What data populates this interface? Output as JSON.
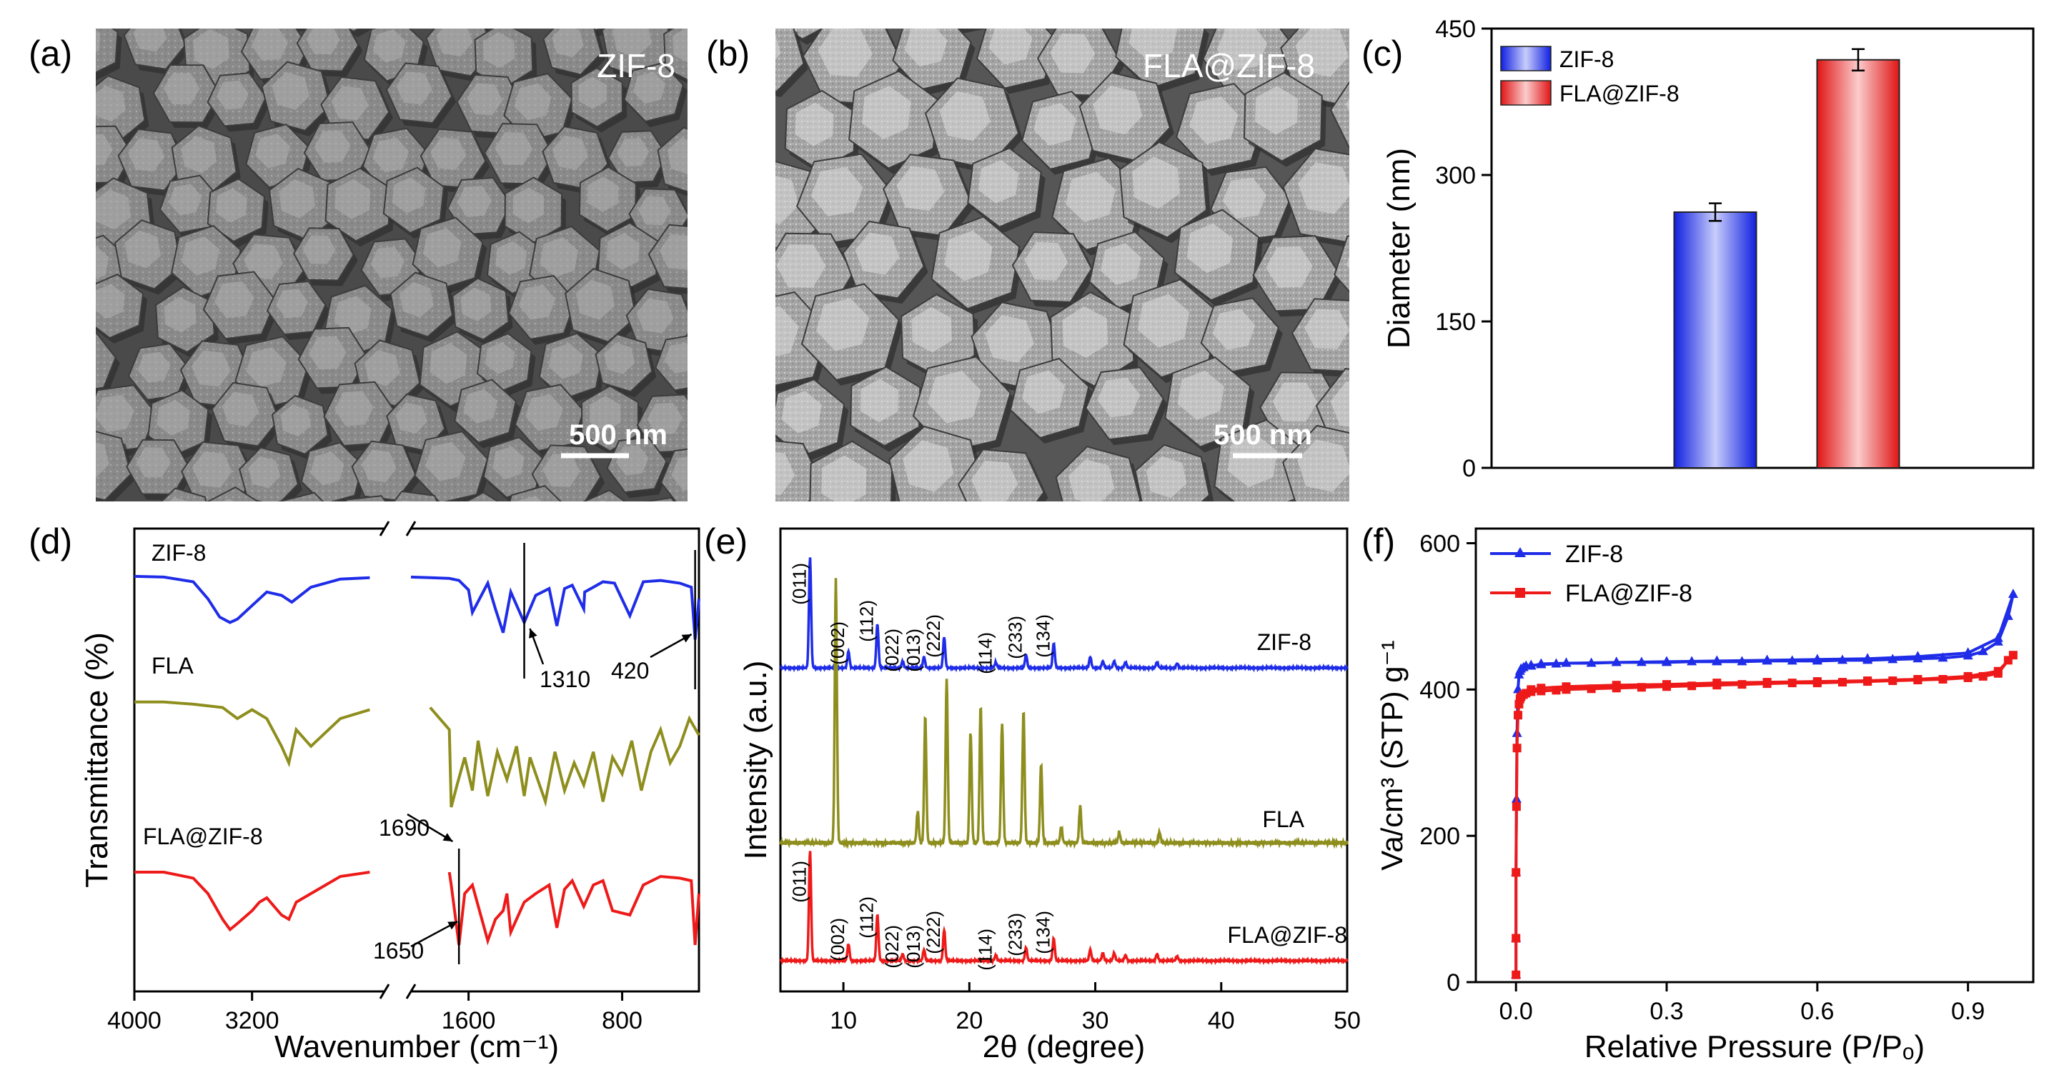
{
  "panel_labels": [
    "(a)",
    "(b)",
    "(c)",
    "(d)",
    "(e)",
    "(f)"
  ],
  "sem": {
    "a_label": "ZIF-8",
    "a_scale": "500 nm",
    "b_label": "FLA@ZIF-8",
    "b_scale": "500 nm"
  },
  "colors": {
    "zif8": "#1f2de8",
    "fla": "#8e8e1e",
    "fla_zif8": "#ee1a1a"
  },
  "chart_data": [
    {
      "panel": "c",
      "type": "bar",
      "categories": [
        "ZIF-8",
        "FLA@ZIF-8"
      ],
      "values": [
        262,
        418
      ],
      "errors": [
        9,
        11
      ],
      "legend": [
        "ZIF-8",
        "FLA@ZIF-8"
      ],
      "xlabel": "",
      "ylabel": "Diameter (nm)",
      "ylim": [
        0,
        450
      ],
      "yticks": [
        0,
        150,
        300,
        450
      ]
    },
    {
      "panel": "d",
      "type": "line",
      "xlabel": "Wavenumber (cm⁻¹)",
      "ylabel": "Transmittance (%)",
      "xticks": [
        "4000",
        "3200",
        "1600",
        "800"
      ],
      "series": [
        {
          "name": "ZIF-8",
          "x": [
            4000,
            3800,
            3600,
            3500,
            3420,
            3350,
            3300,
            3200,
            3100,
            3000,
            2930,
            2800,
            2600,
            2400,
            2200,
            1900,
            1800,
            1700,
            1650,
            1600,
            1580,
            1500,
            1460,
            1420,
            1380,
            1310,
            1250,
            1180,
            1140,
            1100,
            1060,
            1000,
            995,
            950,
            900,
            840,
            760,
            690,
            600,
            500,
            440,
            420,
            400
          ],
          "y": [
            0.02,
            0.03,
            0.1,
            0.35,
            0.62,
            0.7,
            0.65,
            0.45,
            0.25,
            0.3,
            0.4,
            0.18,
            0.06,
            0.04,
            0.04,
            0.03,
            0.04,
            0.05,
            0.08,
            0.22,
            0.55,
            0.12,
            0.5,
            0.85,
            0.25,
            0.7,
            0.3,
            0.2,
            0.75,
            0.2,
            0.15,
            0.5,
            0.25,
            0.18,
            0.1,
            0.12,
            0.6,
            0.1,
            0.08,
            0.12,
            0.18,
            0.95,
            0.35
          ]
        },
        {
          "name": "FLA",
          "x": [
            4000,
            3800,
            3600,
            3400,
            3300,
            3200,
            3100,
            3000,
            2950,
            2900,
            2800,
            2600,
            2400,
            1800,
            1700,
            1690,
            1660,
            1620,
            1580,
            1550,
            1500,
            1450,
            1400,
            1350,
            1310,
            1280,
            1250,
            1200,
            1150,
            1100,
            1050,
            1000,
            950,
            900,
            850,
            800,
            750,
            700,
            650,
            600,
            550,
            500,
            450,
            400
          ],
          "y": [
            0.05,
            0.05,
            0.07,
            0.1,
            0.2,
            0.12,
            0.2,
            0.45,
            0.6,
            0.3,
            0.45,
            0.2,
            0.12,
            0.1,
            0.3,
            1.0,
            0.8,
            0.55,
            0.85,
            0.4,
            0.9,
            0.5,
            0.75,
            0.45,
            0.9,
            0.55,
            0.7,
            0.95,
            0.5,
            0.85,
            0.6,
            0.8,
            0.5,
            0.95,
            0.55,
            0.7,
            0.4,
            0.85,
            0.5,
            0.3,
            0.6,
            0.45,
            0.2,
            0.35
          ]
        },
        {
          "name": "FLA@ZIF-8",
          "x": [
            4000,
            3800,
            3600,
            3500,
            3400,
            3350,
            3300,
            3200,
            3150,
            3100,
            3000,
            2950,
            2900,
            2800,
            2600,
            2400,
            1700,
            1690,
            1650,
            1620,
            1580,
            1500,
            1460,
            1420,
            1400,
            1380,
            1310,
            1250,
            1180,
            1140,
            1100,
            1060,
            1000,
            950,
            900,
            850,
            760,
            690,
            600,
            500,
            440,
            420,
            400
          ],
          "y": [
            0.05,
            0.05,
            0.12,
            0.3,
            0.6,
            0.72,
            0.65,
            0.5,
            0.4,
            0.35,
            0.55,
            0.6,
            0.4,
            0.3,
            0.1,
            0.05,
            0.05,
            0.2,
            0.9,
            0.3,
            0.2,
            0.85,
            0.6,
            0.5,
            0.3,
            0.75,
            0.4,
            0.3,
            0.2,
            0.7,
            0.25,
            0.15,
            0.45,
            0.2,
            0.15,
            0.5,
            0.55,
            0.2,
            0.1,
            0.12,
            0.15,
            0.9,
            0.3
          ]
        }
      ],
      "annotations": [
        "1310",
        "420",
        "1690",
        "1650"
      ]
    },
    {
      "panel": "e",
      "type": "line",
      "xlabel": "2θ (degree)",
      "ylabel": "Intensity (a.u.)",
      "xlim": [
        5,
        50
      ],
      "xticks": [
        10,
        20,
        30,
        40,
        50
      ],
      "series": [
        {
          "name": "ZIF-8",
          "peaks_x": [
            7.35,
            10.4,
            12.7,
            14.7,
            16.4,
            18.0,
            22.1,
            24.5,
            26.7,
            29.6,
            30.6,
            31.5,
            32.4,
            34.9,
            36.5
          ],
          "peaks_h": [
            1.0,
            0.15,
            0.4,
            0.06,
            0.1,
            0.28,
            0.05,
            0.12,
            0.22,
            0.1,
            0.06,
            0.06,
            0.05,
            0.05,
            0.04
          ],
          "hkl": [
            "(011)",
            "(002)",
            "(112)",
            "(022)",
            "(013)",
            "(222)",
            "(114)",
            "(233)",
            "(134)"
          ]
        },
        {
          "name": "FLA",
          "peaks_x": [
            9.4,
            15.9,
            16.5,
            18.2,
            20.1,
            20.9,
            22.6,
            24.3,
            25.7,
            27.3,
            28.8,
            31.9,
            35.1
          ],
          "peaks_h": [
            1.0,
            0.12,
            0.48,
            0.62,
            0.42,
            0.52,
            0.45,
            0.5,
            0.3,
            0.06,
            0.14,
            0.04,
            0.04
          ]
        },
        {
          "name": "FLA@ZIF-8",
          "peaks_x": [
            7.35,
            10.4,
            12.7,
            14.7,
            16.4,
            18.0,
            22.1,
            24.5,
            26.7,
            29.6,
            30.6,
            31.5,
            32.4,
            34.9,
            36.5
          ],
          "peaks_h": [
            1.0,
            0.15,
            0.42,
            0.06,
            0.1,
            0.28,
            0.05,
            0.12,
            0.2,
            0.1,
            0.07,
            0.07,
            0.05,
            0.06,
            0.04
          ],
          "hkl": [
            "(011)",
            "(002)",
            "(112)",
            "(022)",
            "(013)",
            "(222)",
            "(114)",
            "(233)",
            "(134)"
          ]
        }
      ]
    },
    {
      "panel": "f",
      "type": "line",
      "xlabel": "Relative Pressure (P/Pₒ)",
      "ylabel": "Va/cm³ (STP) g⁻¹",
      "xlim": [
        -0.08,
        1.03
      ],
      "ylim": [
        0,
        620
      ],
      "xticks": [
        "0.0",
        "0.3",
        "0.6",
        "0.9"
      ],
      "yticks": [
        0,
        200,
        400,
        600
      ],
      "series": [
        {
          "name": "ZIF-8",
          "x": [
            0.0,
            0.0,
            0.0,
            0.001,
            0.002,
            0.004,
            0.006,
            0.008,
            0.01,
            0.015,
            0.02,
            0.03,
            0.05,
            0.08,
            0.1,
            0.15,
            0.2,
            0.25,
            0.3,
            0.35,
            0.4,
            0.45,
            0.5,
            0.55,
            0.6,
            0.65,
            0.7,
            0.75,
            0.8,
            0.85,
            0.9,
            0.93,
            0.96,
            0.98,
            0.99,
            0.96,
            0.9,
            0.8,
            0.7,
            0.6,
            0.5,
            0.4,
            0.3,
            0.2,
            0.1,
            0.05,
            0.03
          ],
          "y": [
            10,
            60,
            150,
            250,
            340,
            400,
            420,
            425,
            428,
            430,
            432,
            433,
            434,
            435,
            436,
            436,
            437,
            437,
            437,
            438,
            438,
            438,
            439,
            439,
            439,
            440,
            440,
            441,
            442,
            443,
            446,
            452,
            465,
            500,
            530,
            470,
            450,
            445,
            442,
            441,
            440,
            439,
            438,
            437,
            436,
            435,
            432
          ]
        },
        {
          "name": "FLA@ZIF-8",
          "x": [
            0.0,
            0.0,
            0.0,
            0.001,
            0.002,
            0.004,
            0.006,
            0.008,
            0.01,
            0.015,
            0.02,
            0.03,
            0.05,
            0.08,
            0.1,
            0.15,
            0.2,
            0.25,
            0.3,
            0.35,
            0.4,
            0.45,
            0.5,
            0.55,
            0.6,
            0.65,
            0.7,
            0.75,
            0.8,
            0.85,
            0.9,
            0.93,
            0.96,
            0.98,
            0.99,
            0.96,
            0.9,
            0.8,
            0.7,
            0.6,
            0.5,
            0.4,
            0.3,
            0.2,
            0.1,
            0.05,
            0.03
          ],
          "y": [
            10,
            60,
            150,
            240,
            320,
            365,
            380,
            387,
            390,
            393,
            395,
            397,
            398,
            399,
            400,
            401,
            402,
            403,
            404,
            405,
            406,
            407,
            408,
            409,
            409,
            410,
            411,
            412,
            413,
            414,
            416,
            418,
            422,
            440,
            447,
            425,
            418,
            414,
            412,
            411,
            410,
            409,
            407,
            406,
            404,
            402,
            400
          ]
        }
      ]
    }
  ]
}
